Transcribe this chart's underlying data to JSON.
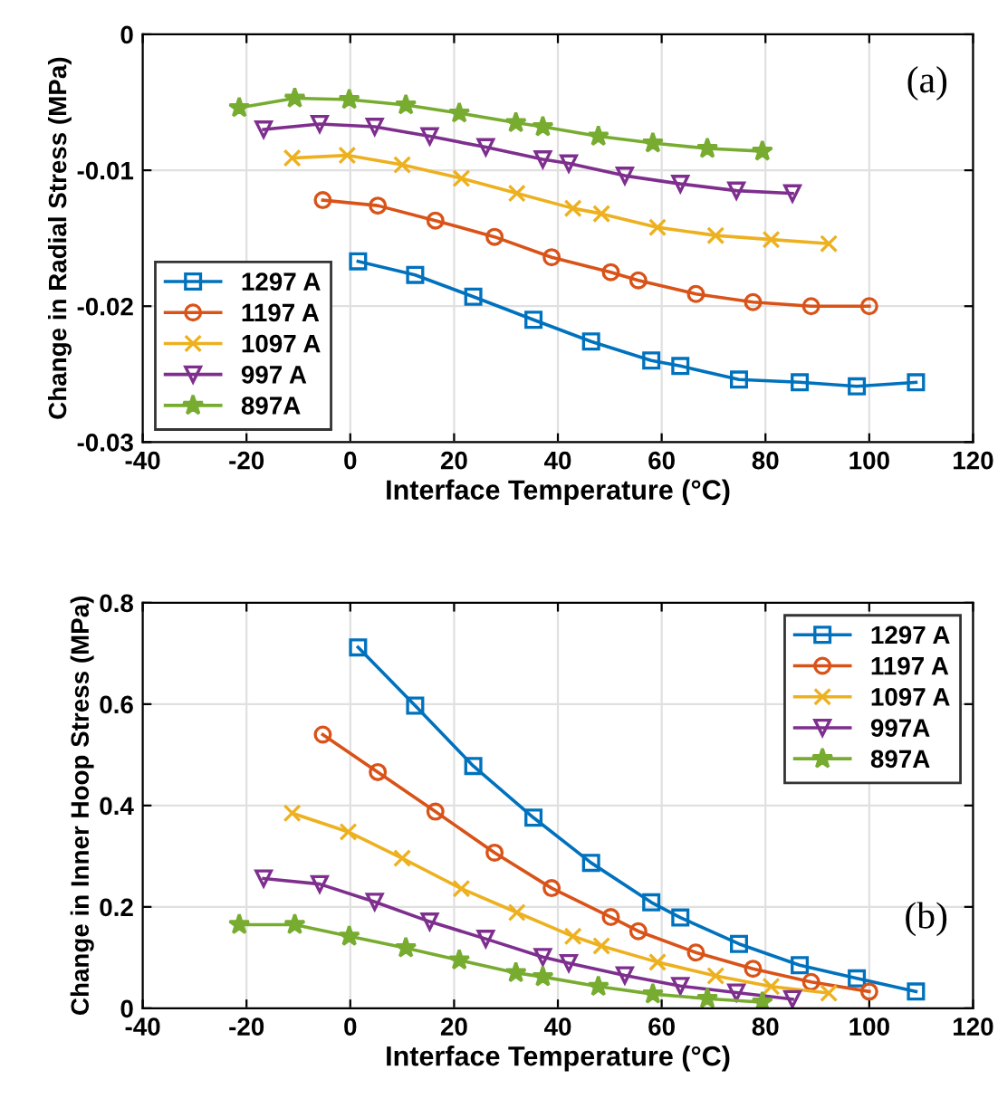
{
  "chart_data": [
    {
      "type": "line",
      "xlabel": "Interface Temperature (°C)",
      "ylabel": "Change in Radial Stress (MPa)",
      "annotations": [
        "(a)"
      ],
      "xlim": [
        -40,
        120
      ],
      "xticks": [
        -40,
        -20,
        0,
        20,
        40,
        60,
        80,
        100,
        120
      ],
      "ylim": [
        -0.03,
        0
      ],
      "yticks": [
        -0.03,
        -0.02,
        -0.01,
        0
      ],
      "grid": true,
      "legend": "bottom left",
      "line_style": "solid",
      "series": [
        {
          "name": "1297 A",
          "color": "#0072bd",
          "marker": "square",
          "x": [
            1.5,
            12.5,
            23.7,
            35.3,
            46.4,
            58.0,
            63.6,
            74.9,
            86.6,
            97.6,
            109
          ],
          "values": [
            -0.0167,
            -0.0177,
            -0.0193,
            -0.021,
            -0.0226,
            -0.024,
            -0.0244,
            -0.0254,
            -0.0256,
            -0.0259,
            -0.0256
          ]
        },
        {
          "name": "1197 A",
          "color": "#d95319",
          "marker": "circle",
          "x": [
            -5.3,
            5.3,
            16.4,
            27.8,
            38.8,
            50.2,
            55.5,
            66.6,
            77.6,
            88.8,
            100
          ],
          "values": [
            -0.0122,
            -0.0126,
            -0.0137,
            -0.0149,
            -0.0164,
            -0.0175,
            -0.0181,
            -0.0191,
            -0.0197,
            -0.02,
            -0.02
          ]
        },
        {
          "name": "1097 A",
          "color": "#edb120",
          "marker": "cross",
          "x": [
            -11.2,
            -0.6,
            10,
            21.4,
            32.1,
            42.9,
            48.4,
            59.2,
            70.4,
            81.1,
            92.2
          ],
          "values": [
            -0.0091,
            -0.0089,
            -0.0096,
            -0.0106,
            -0.0117,
            -0.0128,
            -0.0132,
            -0.0142,
            -0.0148,
            -0.0151,
            -0.0154
          ]
        },
        {
          "name": "997 A",
          "color": "#7e2f8e",
          "marker": "triangle",
          "x": [
            -16.7,
            -5.9,
            4.7,
            15.3,
            26.1,
            37.1,
            42.1,
            52.9,
            63.6,
            74.4,
            85.2
          ],
          "values": [
            -0.007,
            -0.0066,
            -0.0068,
            -0.0075,
            -0.0083,
            -0.0092,
            -0.0095,
            -0.0104,
            -0.011,
            -0.0115,
            -0.0117
          ]
        },
        {
          "name": "897A",
          "color": "#77ac30",
          "marker": "star",
          "x": [
            -21.4,
            -10.7,
            -0.2,
            10.7,
            21.0,
            31.9,
            37.1,
            47.8,
            58.3,
            68.8,
            79.4
          ],
          "values": [
            -0.0054,
            -0.0047,
            -0.0048,
            -0.0052,
            -0.0058,
            -0.0065,
            -0.0068,
            -0.0075,
            -0.008,
            -0.0084,
            -0.0086
          ]
        }
      ]
    },
    {
      "type": "line",
      "xlabel": "Interface Temperature (°C)",
      "ylabel": "Change in Inner Hoop Stress (MPa)",
      "annotations": [
        "(b)"
      ],
      "xlim": [
        -40,
        120
      ],
      "xticks": [
        -40,
        -20,
        0,
        20,
        40,
        60,
        80,
        100,
        120
      ],
      "ylim": [
        0,
        0.8
      ],
      "yticks": [
        0,
        0.2,
        0.4,
        0.6,
        0.8
      ],
      "grid": true,
      "legend": "top right",
      "line_style": "solid",
      "series": [
        {
          "name": "1297 A",
          "color": "#0072bd",
          "marker": "square",
          "x": [
            1.5,
            12.5,
            23.7,
            35.3,
            46.4,
            58.0,
            63.6,
            74.9,
            86.6,
            97.6,
            109
          ],
          "values": [
            0.712,
            0.597,
            0.478,
            0.376,
            0.287,
            0.209,
            0.179,
            0.127,
            0.085,
            0.059,
            0.033
          ]
        },
        {
          "name": "1197 A",
          "color": "#d95319",
          "marker": "circle",
          "x": [
            -5.3,
            5.3,
            16.4,
            27.8,
            38.8,
            50.2,
            55.5,
            66.6,
            77.6,
            88.8,
            100
          ],
          "values": [
            0.54,
            0.466,
            0.388,
            0.307,
            0.237,
            0.18,
            0.152,
            0.11,
            0.078,
            0.052,
            0.033
          ]
        },
        {
          "name": "1097 A",
          "color": "#edb120",
          "marker": "cross",
          "x": [
            -11.2,
            -0.4,
            10,
            21.4,
            32.1,
            42.9,
            48.4,
            59.2,
            70.4,
            81.1,
            92.2
          ],
          "values": [
            0.385,
            0.348,
            0.296,
            0.236,
            0.189,
            0.142,
            0.123,
            0.091,
            0.064,
            0.043,
            0.03
          ]
        },
        {
          "name": "997A",
          "color": "#7e2f8e",
          "marker": "triangle",
          "x": [
            -16.7,
            -5.9,
            4.7,
            15.3,
            26.1,
            37.1,
            42.1,
            52.9,
            63.6,
            74.4,
            85.2
          ],
          "values": [
            0.256,
            0.245,
            0.21,
            0.171,
            0.137,
            0.101,
            0.089,
            0.065,
            0.044,
            0.031,
            0.018
          ]
        },
        {
          "name": "897A",
          "color": "#77ac30",
          "marker": "star",
          "x": [
            -21.4,
            -10.7,
            -0.2,
            10.7,
            21.0,
            31.9,
            37.1,
            47.8,
            58.3,
            68.8,
            79.4
          ],
          "values": [
            0.165,
            0.165,
            0.142,
            0.119,
            0.095,
            0.07,
            0.062,
            0.043,
            0.028,
            0.019,
            0.012
          ]
        }
      ]
    }
  ]
}
